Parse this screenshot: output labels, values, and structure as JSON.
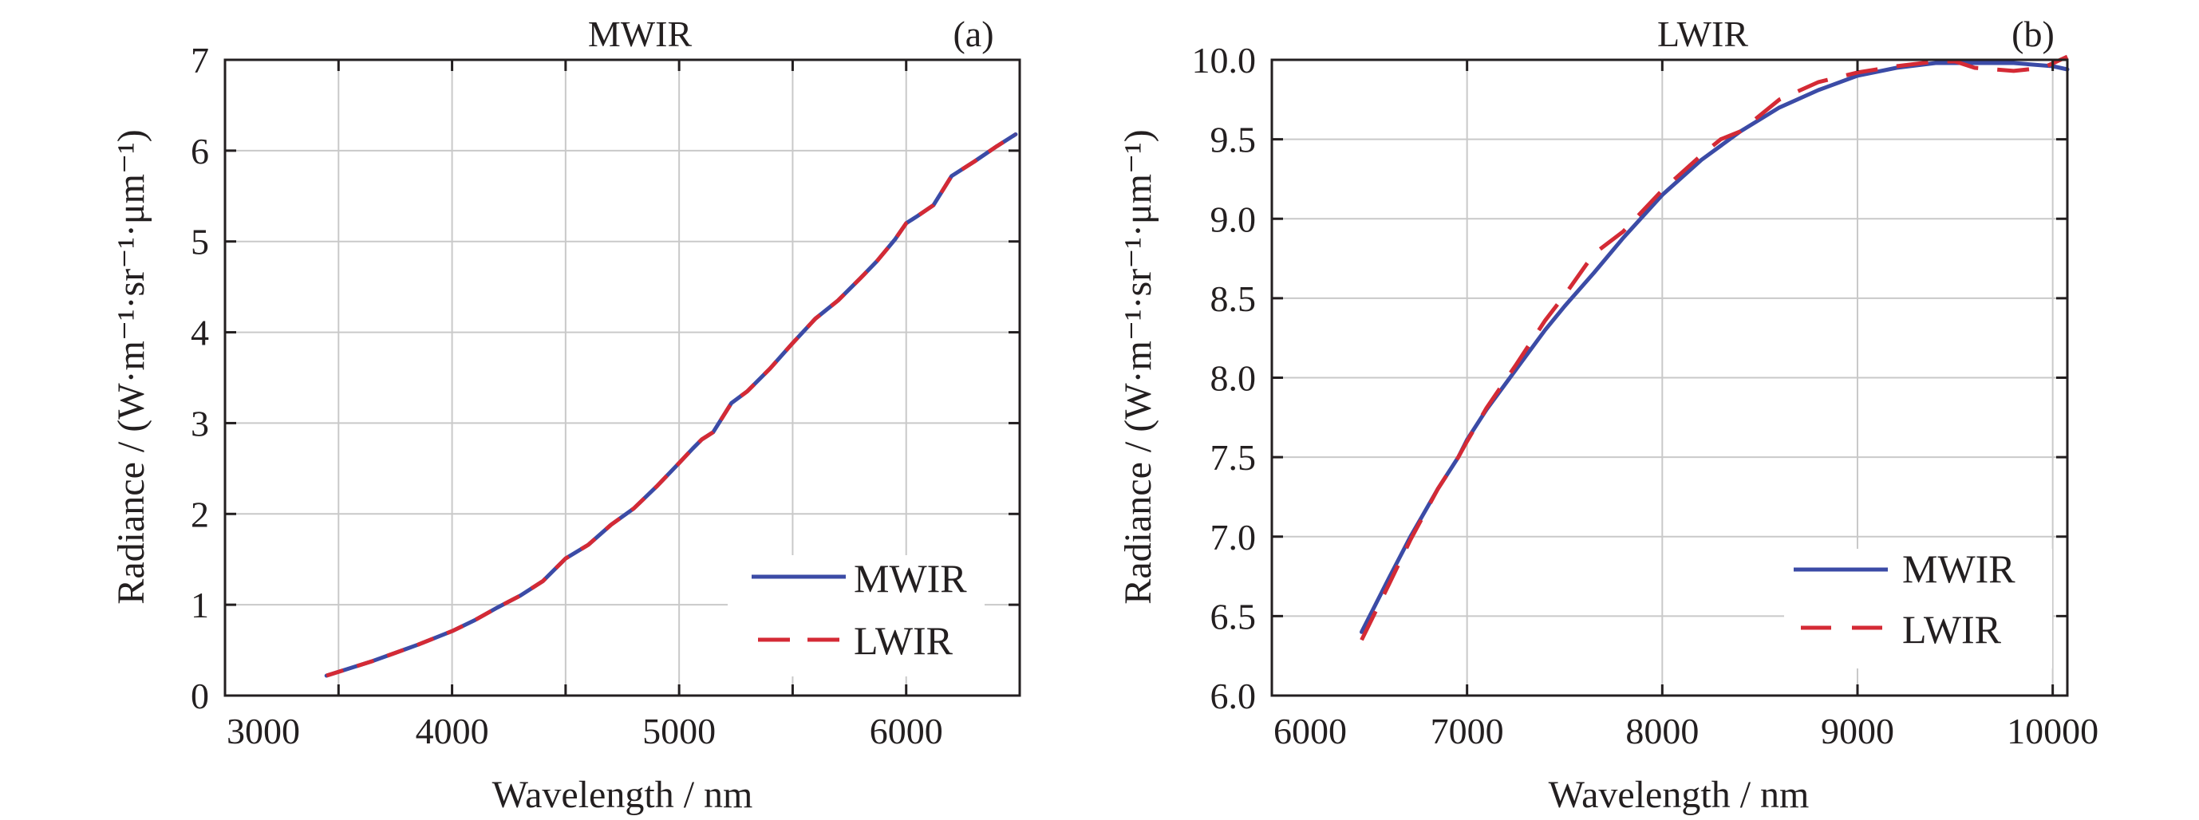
{
  "figure": {
    "panels": [
      "a",
      "b"
    ]
  },
  "chart_data": [
    {
      "type": "line",
      "panel_label": "(a)",
      "title": "MWIR",
      "xlabel": "Wavelength / nm",
      "ylabel": "Radiance / (W·m⁻¹·sr⁻¹·μm⁻¹)",
      "xlim": [
        3000,
        6500
      ],
      "ylim": [
        0,
        7
      ],
      "xticks": [
        3000,
        4000,
        5000,
        6000
      ],
      "xtick_labels": [
        "3000",
        "4000",
        "5000",
        "6000"
      ],
      "xgrid": [
        3500,
        4000,
        4500,
        5000,
        5500,
        6000
      ],
      "yticks": [
        0,
        1,
        2,
        3,
        4,
        5,
        6,
        7
      ],
      "ytick_labels": [
        "0",
        "1",
        "2",
        "3",
        "4",
        "5",
        "6",
        "7"
      ],
      "grid": true,
      "legend": {
        "position": "bottom-right",
        "entries": [
          "MWIR",
          "LWIR"
        ]
      },
      "series": [
        {
          "name": "MWIR",
          "color": "#3b4ba6",
          "style": "solid",
          "x": [
            3447,
            3550,
            3650,
            3750,
            3850,
            4000,
            4100,
            4200,
            4300,
            4400,
            4500,
            4600,
            4700,
            4800,
            4900,
            5000,
            5060,
            5100,
            5150,
            5230,
            5300,
            5400,
            5500,
            5600,
            5700,
            5800,
            5870,
            5950,
            6000,
            6050,
            6120,
            6200,
            6300,
            6400,
            6482
          ],
          "y": [
            0.22,
            0.3,
            0.38,
            0.47,
            0.56,
            0.71,
            0.83,
            0.97,
            1.1,
            1.26,
            1.51,
            1.66,
            1.88,
            2.06,
            2.3,
            2.56,
            2.72,
            2.82,
            2.9,
            3.22,
            3.35,
            3.6,
            3.88,
            4.15,
            4.35,
            4.6,
            4.78,
            5.02,
            5.2,
            5.28,
            5.4,
            5.72,
            5.88,
            6.05,
            6.18
          ]
        },
        {
          "name": "LWIR",
          "color": "#d42a35",
          "style": "dashed",
          "x": [
            3447,
            3550,
            3650,
            3750,
            3850,
            4000,
            4100,
            4200,
            4300,
            4400,
            4500,
            4600,
            4700,
            4800,
            4900,
            5000,
            5060,
            5100,
            5150,
            5230,
            5300,
            5400,
            5500,
            5600,
            5700,
            5800,
            5870,
            5950,
            6000,
            6050,
            6120,
            6200,
            6300,
            6400,
            6482
          ],
          "y": [
            0.22,
            0.3,
            0.38,
            0.47,
            0.56,
            0.71,
            0.83,
            0.97,
            1.1,
            1.26,
            1.51,
            1.66,
            1.88,
            2.06,
            2.3,
            2.56,
            2.72,
            2.82,
            2.9,
            3.22,
            3.35,
            3.6,
            3.88,
            4.15,
            4.35,
            4.6,
            4.78,
            5.02,
            5.2,
            5.28,
            5.4,
            5.72,
            5.88,
            6.05,
            6.18
          ]
        }
      ]
    },
    {
      "type": "line",
      "panel_label": "(b)",
      "title": "LWIR",
      "xlabel": "Wavelength / nm",
      "ylabel": "Radiance / (W·m⁻¹·sr⁻¹·μm⁻¹)",
      "xlim": [
        6000,
        10075
      ],
      "ylim": [
        6.0,
        10.0
      ],
      "xticks": [
        6000,
        7000,
        8000,
        9000,
        10000
      ],
      "xtick_labels": [
        "6000",
        "7000",
        "8000",
        "9000",
        "10000"
      ],
      "xgrid": [
        7000,
        8000,
        9000,
        10000
      ],
      "yticks": [
        6.0,
        6.5,
        7.0,
        7.5,
        8.0,
        8.5,
        9.0,
        9.5,
        10.0
      ],
      "ytick_labels": [
        "6.0",
        "6.5",
        "7.0",
        "7.5",
        "8.0",
        "8.5",
        "9.0",
        "9.5",
        "10.0"
      ],
      "grid": true,
      "legend": {
        "position": "bottom-right",
        "entries": [
          "MWIR",
          "LWIR"
        ]
      },
      "series": [
        {
          "name": "MWIR",
          "color": "#3b4ba6",
          "style": "solid",
          "x": [
            6460,
            6600,
            6710,
            6850,
            6955,
            7000,
            7100,
            7250,
            7400,
            7500,
            7650,
            7800,
            8000,
            8200,
            8400,
            8600,
            8800,
            9000,
            9200,
            9400,
            9600,
            9800,
            10000,
            10075
          ],
          "y": [
            6.4,
            6.74,
            7.0,
            7.3,
            7.5,
            7.61,
            7.8,
            8.05,
            8.3,
            8.45,
            8.66,
            8.88,
            9.15,
            9.37,
            9.55,
            9.7,
            9.81,
            9.9,
            9.95,
            9.98,
            9.98,
            9.98,
            9.96,
            9.94
          ]
        },
        {
          "name": "LWIR",
          "color": "#d42a35",
          "style": "dashed",
          "x": [
            6460,
            6600,
            6710,
            6850,
            6955,
            7000,
            7100,
            7250,
            7400,
            7500,
            7650,
            7800,
            8000,
            8200,
            8300,
            8400,
            8600,
            8800,
            9000,
            9200,
            9400,
            9500,
            9600,
            9800,
            9950,
            10075
          ],
          "y": [
            6.35,
            6.7,
            6.98,
            7.3,
            7.5,
            7.6,
            7.81,
            8.08,
            8.36,
            8.52,
            8.78,
            8.92,
            9.18,
            9.4,
            9.5,
            9.55,
            9.75,
            9.86,
            9.92,
            9.96,
            9.99,
            9.99,
            9.95,
            9.93,
            9.95,
            10.02
          ]
        }
      ]
    }
  ]
}
